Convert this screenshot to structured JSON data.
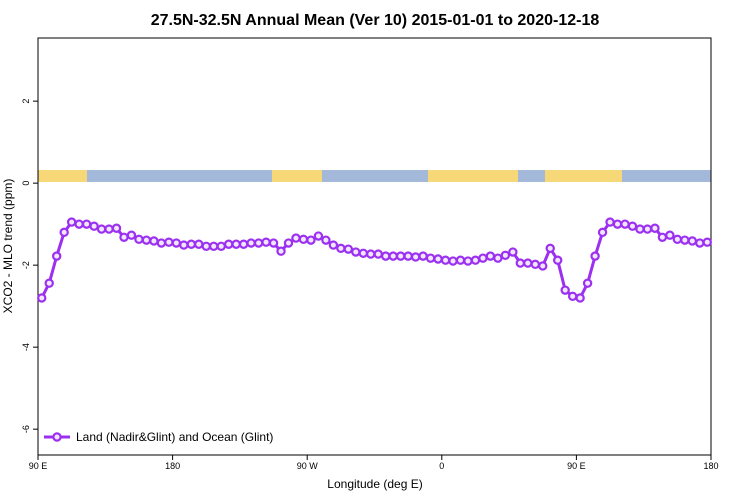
{
  "chart_data": {
    "type": "line",
    "title": "27.5N-32.5N Annual Mean (Ver 10)   2015-01-01 to 2020-12-18",
    "x_label": "Longitude (deg E)",
    "y_label": "XCO2 - MLO trend (ppm)",
    "xlim": [
      90,
      540
    ],
    "ylim": [
      -6.63,
      3.54
    ],
    "xticks": [
      {
        "value": 90,
        "label": "90 E"
      },
      180,
      {
        "value": 270,
        "label": "90 W"
      },
      {
        "value": 360,
        "label": "0"
      },
      {
        "value": 450,
        "label": "90 E"
      },
      {
        "value": 540,
        "label": "180"
      }
    ],
    "yticks": [
      -6,
      -4,
      -2,
      0,
      2
    ],
    "grid": false,
    "legend": "bottom-left",
    "x": [
      92.5,
      97.5,
      102.5,
      107.5,
      112.5,
      117.5,
      122.5,
      127.5,
      132.5,
      137.5,
      142.5,
      147.5,
      152.5,
      157.5,
      162.5,
      167.5,
      172.5,
      177.5,
      182.5,
      187.5,
      192.5,
      197.5,
      202.5,
      207.5,
      212.5,
      217.5,
      222.5,
      227.5,
      232.5,
      237.5,
      242.5,
      247.5,
      252.5,
      257.5,
      262.5,
      267.5,
      272.5,
      277.5,
      282.5,
      287.5,
      292.5,
      297.5,
      302.5,
      307.5,
      312.5,
      317.5,
      322.5,
      327.5,
      332.5,
      337.5,
      342.5,
      347.5,
      352.5,
      357.5,
      362.5,
      367.5,
      372.5,
      377.5,
      382.5,
      387.5,
      392.5,
      397.5,
      402.5,
      407.5,
      412.5,
      417.5,
      422.5,
      427.5,
      432.5,
      437.5,
      442.5,
      447.5,
      452.5,
      457.5,
      462.5,
      467.5,
      472.5,
      477.5,
      482.5,
      487.5,
      492.5,
      497.5,
      502.5,
      507.5,
      512.5,
      517.5,
      522.5,
      527.5,
      532.5,
      537.5
    ],
    "series": [
      {
        "name": "Land (Nadir&Glint) and Ocean (Glint)",
        "color": "#9b30f0",
        "values": [
          -2.8,
          -2.44,
          -1.78,
          -1.2,
          -0.95,
          -1.0,
          -1.0,
          -1.05,
          -1.12,
          -1.12,
          -1.1,
          -1.32,
          -1.27,
          -1.37,
          -1.39,
          -1.41,
          -1.46,
          -1.44,
          -1.46,
          -1.51,
          -1.49,
          -1.49,
          -1.54,
          -1.54,
          -1.54,
          -1.49,
          -1.49,
          -1.49,
          -1.46,
          -1.46,
          -1.44,
          -1.46,
          -1.66,
          -1.46,
          -1.34,
          -1.37,
          -1.39,
          -1.29,
          -1.39,
          -1.51,
          -1.59,
          -1.61,
          -1.68,
          -1.71,
          -1.73,
          -1.73,
          -1.78,
          -1.78,
          -1.78,
          -1.78,
          -1.8,
          -1.78,
          -1.83,
          -1.85,
          -1.88,
          -1.9,
          -1.88,
          -1.9,
          -1.88,
          -1.83,
          -1.78,
          -1.83,
          -1.76,
          -1.68,
          -1.95,
          -1.95,
          -1.98,
          -2.02,
          -1.59,
          -1.88,
          -2.61,
          -2.76,
          -2.8,
          -2.44,
          -1.78,
          -1.2,
          -0.95,
          -1.0,
          -1.0,
          -1.05,
          -1.12,
          -1.12,
          -1.1,
          -1.32,
          -1.27,
          -1.37,
          -1.39,
          -1.41,
          -1.46,
          -1.44
        ]
      }
    ]
  }
}
